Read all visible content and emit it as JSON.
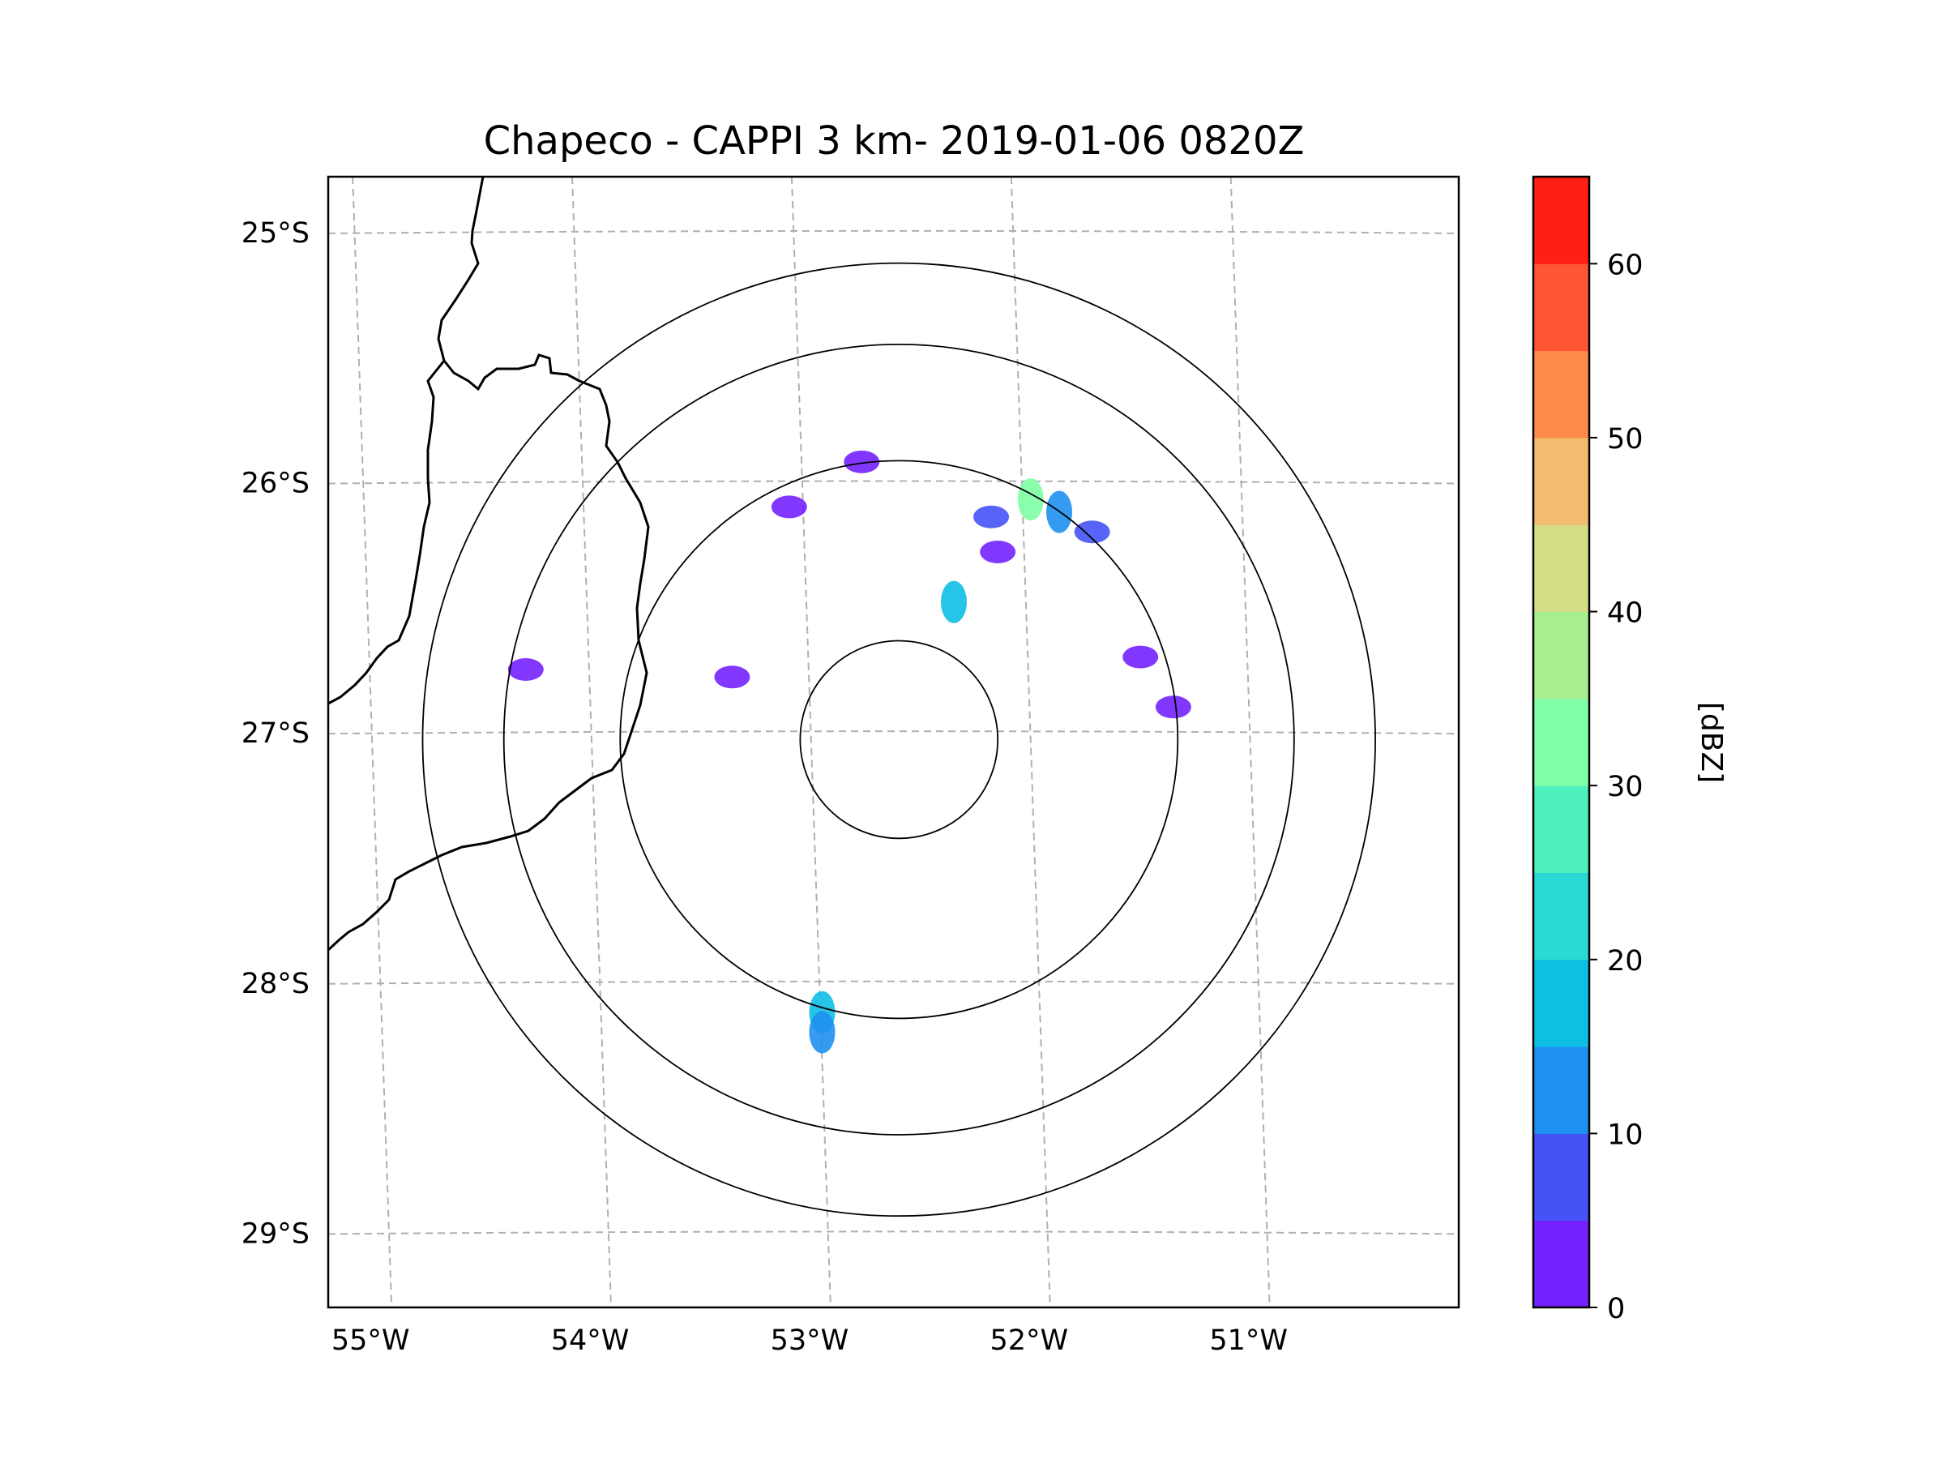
{
  "title": "Chapeco - CAPPI 3 km- 2019-01-06 0820Z",
  "map": {
    "lon_range": [
      -55.2,
      -50.05
    ],
    "lat_range": [
      -29.3,
      -24.78
    ],
    "lat_ticks": [
      {
        "value": -25,
        "label": "25°S"
      },
      {
        "value": -26,
        "label": "26°S"
      },
      {
        "value": -27,
        "label": "27°S"
      },
      {
        "value": -28,
        "label": "28°S"
      },
      {
        "value": -29,
        "label": "29°S"
      }
    ],
    "lon_ticks": [
      {
        "value": -55,
        "label": "55°W"
      },
      {
        "value": -54,
        "label": "54°W"
      },
      {
        "value": -53,
        "label": "53°W"
      },
      {
        "value": -52,
        "label": "52°W"
      },
      {
        "value": -51,
        "label": "51°W"
      }
    ],
    "gridlines": true,
    "radar_center": {
      "lon": -52.6,
      "lat": -27.03
    },
    "range_rings_deg": [
      0.45,
      1.27,
      1.8,
      2.17
    ],
    "reflectivity_echoes": [
      {
        "lon": -52.0,
        "lat": -26.07,
        "dbz": 30
      },
      {
        "lon": -51.87,
        "lat": -26.12,
        "dbz": 10
      },
      {
        "lon": -52.18,
        "lat": -26.14,
        "dbz": 5
      },
      {
        "lon": -51.72,
        "lat": -26.2,
        "dbz": 5
      },
      {
        "lon": -52.15,
        "lat": -26.28,
        "dbz": 3
      },
      {
        "lon": -52.95,
        "lat": -28.12,
        "dbz": 15
      },
      {
        "lon": -52.95,
        "lat": -28.2,
        "dbz": 10
      },
      {
        "lon": -54.3,
        "lat": -26.75,
        "dbz": 3
      },
      {
        "lon": -53.36,
        "lat": -26.78,
        "dbz": 3
      },
      {
        "lon": -51.5,
        "lat": -26.7,
        "dbz": 3
      },
      {
        "lon": -51.35,
        "lat": -26.9,
        "dbz": 3
      },
      {
        "lon": -53.1,
        "lat": -26.1,
        "dbz": 3
      },
      {
        "lon": -52.77,
        "lat": -25.92,
        "dbz": 3
      },
      {
        "lon": -52.35,
        "lat": -26.48,
        "dbz": 15
      }
    ]
  },
  "colorbar": {
    "label": "[dBZ]",
    "range": [
      0,
      65
    ],
    "bounds": [
      0,
      5,
      10,
      15,
      20,
      25,
      30,
      35,
      40,
      45,
      50,
      55,
      60,
      65
    ],
    "colors": [
      "#7421ff",
      "#4553f6",
      "#1e90f0",
      "#0ebfe4",
      "#2ad8d4",
      "#4ef1bd",
      "#80ffa6",
      "#a7ef8e",
      "#d4dd86",
      "#f1bc6e",
      "#ff8b4a",
      "#ff5533",
      "#ff1f17"
    ],
    "ticks": [
      {
        "value": 0,
        "label": "0"
      },
      {
        "value": 10,
        "label": "10"
      },
      {
        "value": 20,
        "label": "20"
      },
      {
        "value": 30,
        "label": "30"
      },
      {
        "value": 40,
        "label": "40"
      },
      {
        "value": 50,
        "label": "50"
      },
      {
        "value": 60,
        "label": "60"
      }
    ]
  }
}
